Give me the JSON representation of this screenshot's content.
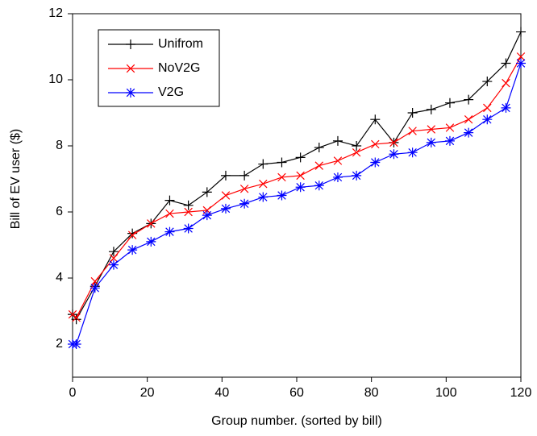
{
  "chart_data": {
    "type": "line",
    "xlabel": "Group number. (sorted by bill)",
    "ylabel": "Bill of EV user ($)",
    "x": [
      0,
      1,
      6,
      11,
      16,
      21,
      26,
      31,
      36,
      41,
      46,
      51,
      56,
      61,
      66,
      71,
      76,
      81,
      86,
      91,
      96,
      101,
      106,
      111,
      116,
      120
    ],
    "series": [
      {
        "name": "Unifrom",
        "color": "#000000",
        "marker": "plus",
        "values": [
          2.9,
          2.75,
          3.75,
          4.8,
          5.35,
          5.65,
          6.35,
          6.2,
          6.6,
          7.1,
          7.1,
          7.45,
          7.5,
          7.65,
          7.95,
          8.15,
          8.0,
          8.8,
          8.1,
          9.0,
          9.1,
          9.3,
          9.4,
          9.95,
          10.5,
          11.45
        ]
      },
      {
        "name": "NoV2G",
        "color": "#ff0000",
        "marker": "cross",
        "values": [
          2.9,
          2.8,
          3.9,
          4.6,
          5.3,
          5.65,
          5.95,
          6.0,
          6.05,
          6.5,
          6.7,
          6.85,
          7.05,
          7.1,
          7.4,
          7.55,
          7.8,
          8.05,
          8.1,
          8.45,
          8.5,
          8.55,
          8.8,
          9.15,
          9.9,
          10.7
        ]
      },
      {
        "name": "V2G",
        "color": "#0000ff",
        "marker": "asterisk",
        "values": [
          2.0,
          2.0,
          3.7,
          4.4,
          4.85,
          5.1,
          5.4,
          5.5,
          5.9,
          6.1,
          6.25,
          6.45,
          6.5,
          6.75,
          6.8,
          7.05,
          7.1,
          7.5,
          7.75,
          7.8,
          8.1,
          8.15,
          8.4,
          8.8,
          9.15,
          10.5
        ]
      }
    ],
    "xlim": [
      0,
      120
    ],
    "xticks": [
      0,
      20,
      40,
      60,
      80,
      100,
      120
    ],
    "ylim": [
      1,
      12
    ],
    "yticks": [
      2,
      4,
      6,
      8,
      10,
      12
    ],
    "legend": "upper left"
  }
}
